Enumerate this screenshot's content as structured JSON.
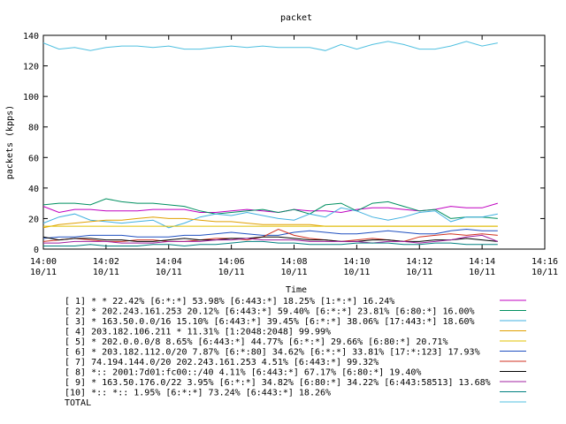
{
  "chart_data": {
    "type": "line",
    "title": "packet",
    "xlabel": "Time",
    "ylabel": "packets (kpps)",
    "xlim": [
      "14:00",
      "14:16"
    ],
    "ylim": [
      0,
      140
    ],
    "yticks": [
      0,
      20,
      40,
      60,
      80,
      100,
      120,
      140
    ],
    "xticks": [
      {
        "time": "14:00",
        "date": "10/11"
      },
      {
        "time": "14:02",
        "date": "10/11"
      },
      {
        "time": "14:04",
        "date": "10/11"
      },
      {
        "time": "14:06",
        "date": "10/11"
      },
      {
        "time": "14:08",
        "date": "10/11"
      },
      {
        "time": "14:10",
        "date": "10/11"
      },
      {
        "time": "14:12",
        "date": "10/11"
      },
      {
        "time": "14:14",
        "date": "10/11"
      },
      {
        "time": "14:16",
        "date": "10/11"
      }
    ],
    "x": [
      "14:00:00",
      "14:00:30",
      "14:01:00",
      "14:01:30",
      "14:02:00",
      "14:02:30",
      "14:03:00",
      "14:03:30",
      "14:04:00",
      "14:04:30",
      "14:05:00",
      "14:05:30",
      "14:06:00",
      "14:06:30",
      "14:07:00",
      "14:07:30",
      "14:08:00",
      "14:08:30",
      "14:09:00",
      "14:09:30",
      "14:10:00",
      "14:10:30",
      "14:11:00",
      "14:11:30",
      "14:12:00",
      "14:12:30",
      "14:13:00",
      "14:13:30",
      "14:14:00",
      "14:14:30"
    ],
    "legend_position": "bottom",
    "grid": false,
    "series": [
      {
        "name": "[ 1] * * 22.42%  [6:*:*] 53.98% [6:443:*] 18.25% [1:*:*] 16.24%",
        "color": "#c000c0",
        "values": [
          28,
          24,
          26,
          26,
          25,
          25,
          25,
          26,
          26,
          26,
          24,
          24,
          25,
          26,
          25,
          24,
          26,
          25,
          25,
          24,
          26,
          27,
          27,
          26,
          25,
          26,
          28,
          27,
          27,
          30
        ]
      },
      {
        "name": "[ 2] * 202.243.161.253 20.12%  [6:443:*] 59.40% [6:*:*] 23.81% [6:80:*] 16.00%",
        "color": "#009060",
        "values": [
          29,
          30,
          30,
          29,
          33,
          31,
          30,
          30,
          29,
          28,
          25,
          23,
          24,
          25,
          26,
          24,
          26,
          23,
          29,
          30,
          25,
          30,
          31,
          28,
          25,
          26,
          20,
          21,
          21,
          20
        ]
      },
      {
        "name": "[ 3] * 163.50.0.0/16 15.10%  [6:443:*] 39.45% [6:*:*] 38.06% [17:443:*] 18.60%",
        "color": "#40b0e0",
        "values": [
          17,
          21,
          23,
          19,
          18,
          17,
          18,
          19,
          14,
          17,
          21,
          23,
          22,
          24,
          22,
          20,
          19,
          23,
          21,
          27,
          25,
          21,
          19,
          21,
          24,
          25,
          18,
          21,
          21,
          23
        ]
      },
      {
        "name": "[ 4] 203.182.106.211 * 11.31%  [1:2048:2048] 99.99%",
        "color": "#e0a000",
        "values": [
          14,
          16,
          17,
          18,
          19,
          19,
          20,
          21,
          20,
          20,
          19,
          18,
          18,
          17,
          16,
          16,
          16,
          16,
          15,
          15,
          15,
          15,
          15,
          15,
          15,
          15,
          15,
          15,
          15,
          15
        ]
      },
      {
        "name": "[ 5] * 202.0.0.0/8 8.65%  [6:443:*] 44.77% [6:*:*] 29.66% [6:80:*] 20.71%",
        "color": "#e0c000",
        "values": [
          15,
          15,
          15,
          15,
          15,
          15,
          15,
          15,
          15,
          15,
          15,
          15,
          15,
          15,
          15,
          15,
          15,
          15,
          15,
          15,
          15,
          15,
          15,
          15,
          15,
          15,
          15,
          15,
          15,
          15
        ]
      },
      {
        "name": "[ 6] * 203.182.112.0/20 7.87%  [6:*:80] 34.62% [6:*:*] 33.81% [17:*:123] 17.93%",
        "color": "#2050c0",
        "values": [
          7,
          8,
          8,
          9,
          9,
          9,
          8,
          8,
          8,
          9,
          9,
          10,
          11,
          10,
          9,
          9,
          11,
          12,
          11,
          10,
          10,
          11,
          12,
          11,
          10,
          10,
          12,
          13,
          12,
          12
        ]
      },
      {
        "name": "[ 7] 74.194.144.0/20 202.243.161.253 4.51%  [6:443:*] 99.32%",
        "color": "#d03020",
        "values": [
          5,
          6,
          7,
          6,
          5,
          5,
          6,
          6,
          5,
          5,
          6,
          7,
          7,
          6,
          8,
          13,
          9,
          7,
          6,
          5,
          6,
          7,
          6,
          5,
          8,
          9,
          10,
          9,
          10,
          9
        ]
      },
      {
        "name": "[ 8] *:: 2001:7d01:fc00::/40 4.11%  [6:443:*] 67.17% [6:80:*] 19.40%",
        "color": "#000000",
        "values": [
          8,
          6,
          7,
          7,
          6,
          6,
          5,
          5,
          6,
          7,
          6,
          6,
          7,
          7,
          8,
          8,
          7,
          6,
          6,
          5,
          5,
          6,
          6,
          5,
          5,
          6,
          6,
          7,
          6,
          5
        ]
      },
      {
        "name": "[ 9] * 163.50.176.0/22 3.95%  [6:*:*] 34.82% [6:80:*] 34.22% [6:443:58513] 13.68%",
        "color": "#a020a0",
        "values": [
          4,
          4,
          5,
          5,
          5,
          4,
          4,
          4,
          5,
          5,
          5,
          6,
          6,
          7,
          6,
          6,
          6,
          5,
          5,
          5,
          5,
          4,
          5,
          5,
          4,
          5,
          6,
          8,
          9,
          5
        ]
      },
      {
        "name": "[10] *:: *:: 1.95%  [6:*:*] 73.24% [6:443:*] 18.26%",
        "color": "#008080",
        "values": [
          2,
          2,
          2,
          3,
          2,
          2,
          2,
          3,
          3,
          2,
          3,
          3,
          4,
          5,
          5,
          4,
          4,
          3,
          3,
          3,
          4,
          4,
          4,
          3,
          3,
          4,
          4,
          3,
          3,
          3
        ]
      },
      {
        "name": "TOTAL",
        "color": "#50c0e0",
        "values": [
          135,
          131,
          132,
          130,
          132,
          133,
          133,
          132,
          133,
          131,
          131,
          132,
          133,
          132,
          133,
          132,
          132,
          132,
          130,
          134,
          131,
          134,
          136,
          134,
          131,
          131,
          133,
          136,
          133,
          135
        ]
      }
    ]
  }
}
